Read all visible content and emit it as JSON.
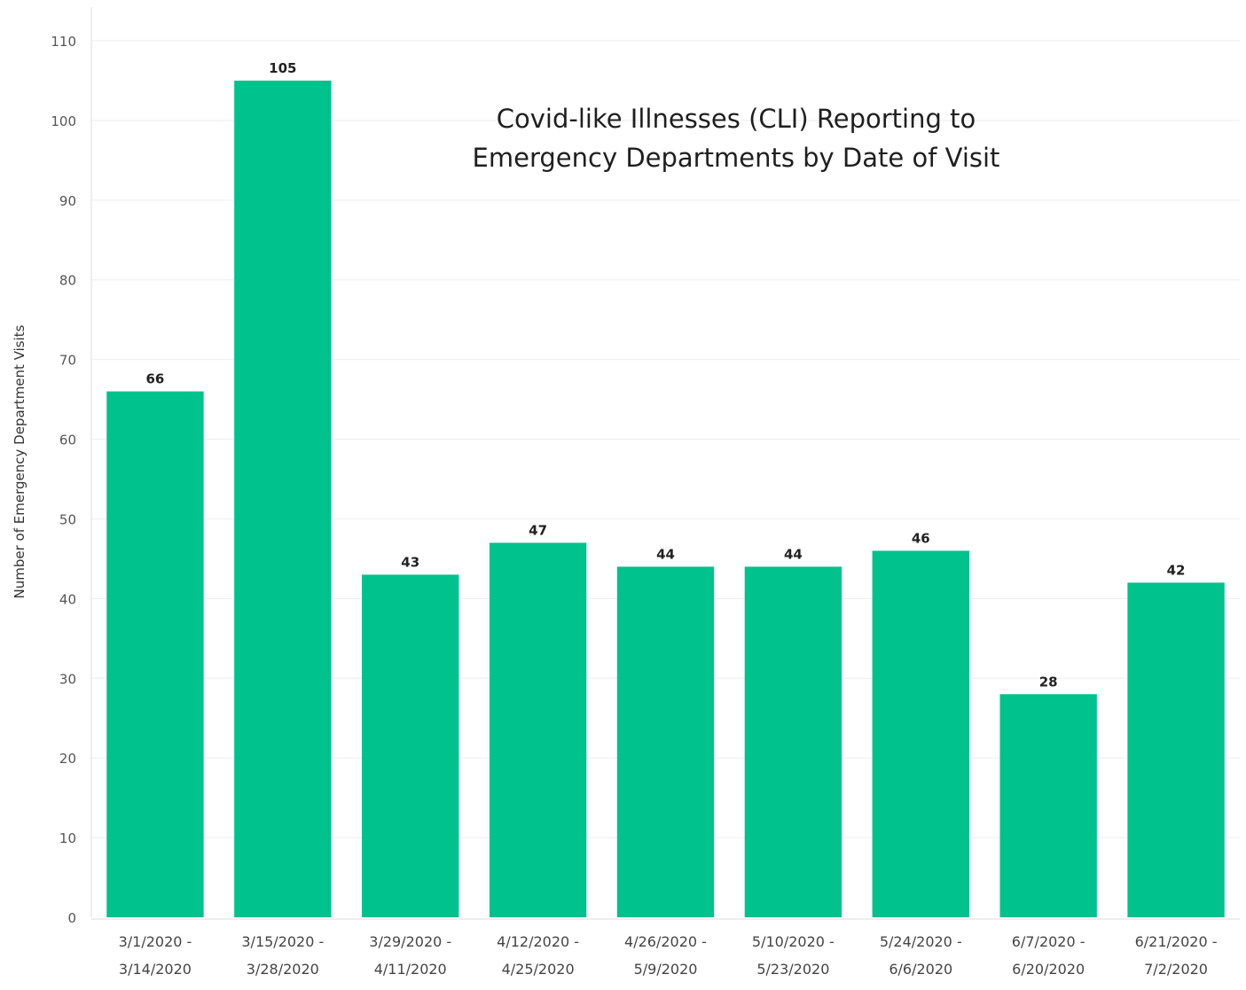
{
  "chart_data": {
    "type": "bar",
    "title": "Covid-like Illnesses (CLI) Reporting to\nEmergency Departments by Date of Visit",
    "xlabel": "",
    "ylabel": "Number of Emergency Department Visits",
    "ylim": [
      0,
      110
    ],
    "yticks": [
      0,
      10,
      20,
      30,
      40,
      50,
      60,
      70,
      80,
      90,
      100,
      110
    ],
    "grid": true,
    "legend": "none",
    "bar_color": "#00c28c",
    "categories": [
      [
        "3/1/2020 -",
        "3/14/2020"
      ],
      [
        "3/15/2020 -",
        "3/28/2020"
      ],
      [
        "3/29/2020 -",
        "4/11/2020"
      ],
      [
        "4/12/2020 -",
        "4/25/2020"
      ],
      [
        "4/26/2020 -",
        "5/9/2020"
      ],
      [
        "5/10/2020 -",
        "5/23/2020"
      ],
      [
        "5/24/2020 -",
        "6/6/2020"
      ],
      [
        "6/7/2020 -",
        "6/20/2020"
      ],
      [
        "6/21/2020 -",
        "7/2/2020"
      ]
    ],
    "values": [
      66,
      105,
      43,
      47,
      44,
      44,
      46,
      28,
      42
    ]
  }
}
